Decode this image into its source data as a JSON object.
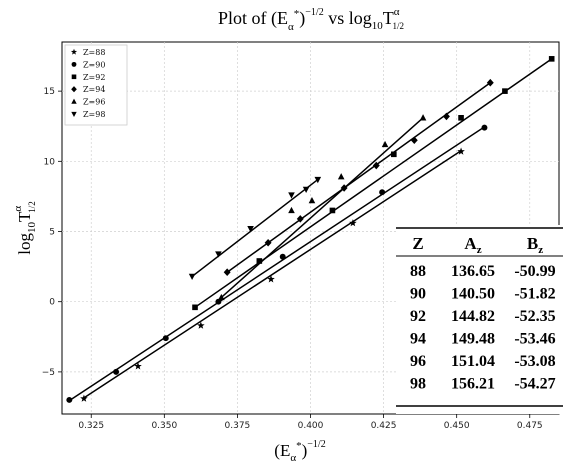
{
  "chart_data": {
    "type": "scatter",
    "title": "Plot of (Eα*)^(-1/2) vs log10 T1/2α",
    "title_parts": {
      "lead": "Plot of (E",
      "sub_alpha": "α",
      "sup_star": "*",
      "close": ")",
      "sup_exp": "−1",
      "exp_den": "2",
      "mid": " vs log",
      "sub_ten": "10",
      "t": "T",
      "sup_alpha": "α",
      "half_num": "1",
      "half_den": "2"
    },
    "xlabel_parts": {
      "open": "(E",
      "sub_alpha": "α",
      "sup_star": "*",
      "close": ")",
      "sup_exp": "−1",
      "exp_den": "2"
    },
    "ylabel_parts": {
      "log": "log",
      "sub_ten": "10",
      "t": "T",
      "sup_alpha": "α",
      "half_num": "1",
      "half_den": "2"
    },
    "xlim": [
      0.315,
      0.485
    ],
    "ylim": [
      -8.0,
      18.5
    ],
    "x_ticks": [
      0.325,
      0.35,
      0.375,
      0.4,
      0.425,
      0.45,
      0.475
    ],
    "x_tick_labels": [
      "0.325",
      "0.350",
      "0.375",
      "0.400",
      "0.425",
      "0.450",
      "0.475"
    ],
    "y_ticks": [
      -5,
      0,
      5,
      10,
      15
    ],
    "y_tick_labels": [
      "−5",
      "0",
      "5",
      "10",
      "15"
    ],
    "grid": true,
    "legend_placement": "top-left",
    "series": [
      {
        "name": "Z=88",
        "marker": "star",
        "A": 136.65,
        "B": -50.99,
        "x": [
          0.3225,
          0.341,
          0.3625,
          0.3865,
          0.4145,
          0.4515
        ],
        "y": [
          -6.9,
          -4.6,
          -1.7,
          1.6,
          5.6,
          10.7
        ]
      },
      {
        "name": "Z=90",
        "marker": "circle",
        "A": 140.5,
        "B": -51.82,
        "x": [
          0.3175,
          0.3335,
          0.3505,
          0.3685,
          0.3905,
          0.4245,
          0.4595
        ],
        "y": [
          -7.0,
          -5.0,
          -2.6,
          0.0,
          3.2,
          7.8,
          12.4
        ]
      },
      {
        "name": "Z=92",
        "marker": "square",
        "A": 144.82,
        "B": -52.35,
        "x": [
          0.3605,
          0.3825,
          0.4075,
          0.4285,
          0.4515,
          0.4665,
          0.4825
        ],
        "y": [
          -0.4,
          2.9,
          6.5,
          10.5,
          13.1,
          15.0,
          17.3
        ]
      },
      {
        "name": "Z=94",
        "marker": "diamond",
        "A": 149.48,
        "B": -53.46,
        "x": [
          0.3715,
          0.3855,
          0.3965,
          0.4115,
          0.4225,
          0.4355,
          0.4465,
          0.4615
        ],
        "y": [
          2.1,
          4.2,
          5.9,
          8.1,
          9.7,
          11.5,
          13.2,
          15.6
        ]
      },
      {
        "name": "Z=96",
        "marker": "triangle-up",
        "A": 151.04,
        "B": -53.08,
        "x": [
          0.3695,
          0.3935,
          0.4005,
          0.4105,
          0.4255,
          0.4385
        ],
        "y": [
          0.3,
          6.5,
          7.2,
          8.9,
          11.2,
          13.1
        ]
      },
      {
        "name": "Z=98",
        "marker": "triangle-down",
        "A": 156.21,
        "B": -54.27,
        "x": [
          0.3595,
          0.3685,
          0.3795,
          0.3935,
          0.3985,
          0.4025
        ],
        "y": [
          1.8,
          3.4,
          5.2,
          7.6,
          8.0,
          8.7
        ]
      }
    ],
    "lines": [
      {
        "series": "Z=88",
        "x": [
          0.3225,
          0.4515
        ],
        "y": [
          -6.85,
          10.75
        ]
      },
      {
        "series": "Z=90",
        "x": [
          0.3175,
          0.4595
        ],
        "y": [
          -7.05,
          12.45
        ]
      },
      {
        "series": "Z=92",
        "x": [
          0.3605,
          0.4825
        ],
        "y": [
          -0.4,
          17.3
        ]
      },
      {
        "series": "Z=94",
        "x": [
          0.3715,
          0.4615
        ],
        "y": [
          2.1,
          15.6
        ]
      },
      {
        "series": "Z=96",
        "x": [
          0.3695,
          0.4385
        ],
        "y": [
          0.3,
          13.1
        ]
      },
      {
        "series": "Z=98",
        "x": [
          0.3595,
          0.4025
        ],
        "y": [
          1.8,
          8.7
        ]
      }
    ],
    "table": {
      "header": {
        "z": "Z",
        "a_base": "A",
        "a_sub": "z",
        "b_base": "B",
        "b_sub": "z"
      },
      "rows": [
        {
          "z": "88",
          "a": "136.65",
          "b": "-50.99"
        },
        {
          "z": "90",
          "a": "140.50",
          "b": "-51.82"
        },
        {
          "z": "92",
          "a": "144.82",
          "b": "-52.35"
        },
        {
          "z": "94",
          "a": "149.48",
          "b": "-53.46"
        },
        {
          "z": "96",
          "a": "151.04",
          "b": "-53.08"
        },
        {
          "z": "98",
          "a": "156.21",
          "b": "-54.27"
        }
      ]
    }
  }
}
